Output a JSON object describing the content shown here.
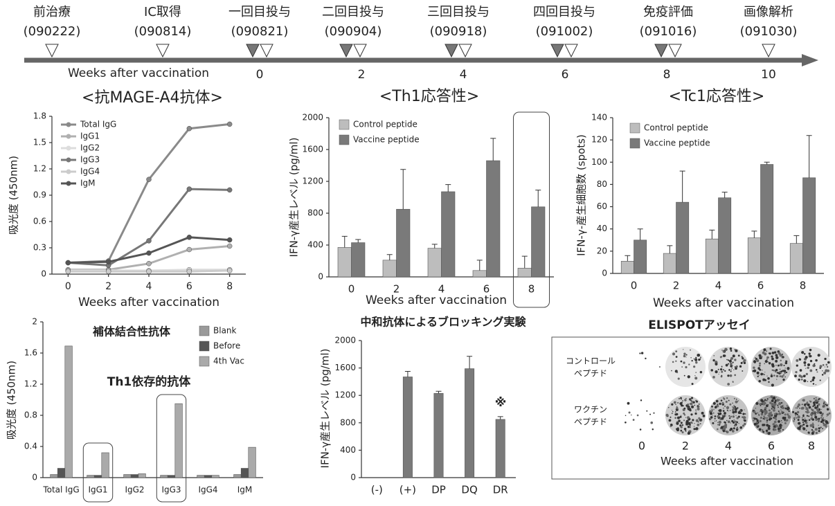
{
  "timeline": {
    "events": [
      {
        "label": "前治療",
        "date": "(090222)"
      },
      {
        "label": "IC取得",
        "date": "(090814)"
      },
      {
        "label": "一回目投与",
        "date": "(090821)"
      },
      {
        "label": "二回目投与",
        "date": "(090904)"
      },
      {
        "label": "三回目投与",
        "date": "(090918)"
      },
      {
        "label": "四回目投与",
        "date": "(091002)"
      },
      {
        "label": "免疫評価",
        "date": "(091016)"
      },
      {
        "label": "画像解析",
        "date": "(091030)"
      }
    ],
    "axis_label": "Weeks after vaccination",
    "ticks": [
      0,
      2,
      4,
      6,
      8,
      10
    ]
  },
  "chart_data": [
    {
      "type": "line",
      "title": "<抗MAGE-A4抗体>",
      "xlabel": "Weeks after vaccination",
      "ylabel": "吸光度 (450nm)",
      "x": [
        0,
        2,
        4,
        6,
        8
      ],
      "xlim": [
        -0.8,
        8.8
      ],
      "xticks": [
        0,
        2,
        4,
        6,
        8
      ],
      "ylim": [
        0,
        1.8
      ],
      "yticks": [
        0,
        0.3,
        0.6,
        0.9,
        1.2,
        1.5,
        1.8
      ],
      "legend": "upper left",
      "series": [
        {
          "name": "Total IgG",
          "color": "#8a8a8a",
          "values": [
            0.13,
            0.15,
            1.08,
            1.66,
            1.71
          ]
        },
        {
          "name": "IgG1",
          "color": "#b0b0b0",
          "values": [
            0.05,
            0.05,
            0.12,
            0.28,
            0.32
          ]
        },
        {
          "name": "IgG2",
          "color": "#dddddd",
          "values": [
            0.04,
            0.04,
            0.04,
            0.05,
            0.05
          ]
        },
        {
          "name": "IgG3",
          "color": "#777777",
          "values": [
            0.13,
            0.1,
            0.38,
            0.97,
            0.96
          ]
        },
        {
          "name": "IgG4",
          "color": "#cccccc",
          "values": [
            0.03,
            0.03,
            0.03,
            0.03,
            0.04
          ]
        },
        {
          "name": "IgM",
          "color": "#555555",
          "values": [
            0.13,
            0.14,
            0.24,
            0.42,
            0.39
          ]
        }
      ]
    },
    {
      "type": "bar",
      "title": "<Th1応答性>",
      "xlabel": "Weeks after vaccination",
      "ylabel": "IFN-γ産生レベル (pg/ml)",
      "categories": [
        "0",
        "2",
        "4",
        "6",
        "8"
      ],
      "ylim": [
        0,
        2000
      ],
      "yticks": [
        0,
        400,
        800,
        1200,
        1600,
        2000
      ],
      "legend": "upper left",
      "series": [
        {
          "name": "Control peptide",
          "color": "#bdbdbd",
          "values": [
            370,
            210,
            360,
            80,
            110
          ],
          "errors": [
            140,
            70,
            50,
            130,
            150
          ]
        },
        {
          "name": "Vaccine peptide",
          "color": "#7a7a7a",
          "values": [
            430,
            850,
            1070,
            1460,
            880
          ],
          "errors": [
            40,
            500,
            90,
            280,
            210
          ]
        }
      ]
    },
    {
      "type": "bar",
      "title": "<Tc1応答性>",
      "xlabel": "Weeks after vaccination",
      "ylabel": "IFN-γ-産生細胞数 (spots)",
      "categories": [
        "0",
        "2",
        "4",
        "6",
        "8"
      ],
      "ylim": [
        0,
        140
      ],
      "yticks": [
        0,
        20,
        40,
        60,
        80,
        100,
        120,
        140
      ],
      "legend": "upper left",
      "series": [
        {
          "name": "Control peptide",
          "color": "#bdbdbd",
          "values": [
            11,
            18,
            31,
            32,
            27
          ],
          "errors": [
            5,
            7,
            8,
            6,
            7
          ]
        },
        {
          "name": "Vaccine peptide",
          "color": "#7a7a7a",
          "values": [
            30,
            64,
            68,
            98,
            86
          ],
          "errors": [
            10,
            28,
            5,
            2,
            38
          ]
        }
      ]
    },
    {
      "type": "bar",
      "title": "補体結合性抗体",
      "ylabel": "吸光度 (450nm)",
      "annotations": [
        "Th1依存的抗体"
      ],
      "categories": [
        "Total IgG",
        "IgG1",
        "IgG2",
        "IgG3",
        "IgG4",
        "IgM"
      ],
      "ylim": [
        0,
        2
      ],
      "yticks": [
        0,
        0.4,
        0.8,
        1.2,
        1.6,
        2
      ],
      "legend": "upper right",
      "series": [
        {
          "name": "Blank",
          "color": "#9a9a9a",
          "values": [
            0.04,
            0.03,
            0.04,
            0.03,
            0.03,
            0.04
          ]
        },
        {
          "name": "Before",
          "color": "#555555",
          "values": [
            0.12,
            0.03,
            0.04,
            0.03,
            0.03,
            0.12
          ]
        },
        {
          "name": "4th Vac",
          "color": "#aaaaaa",
          "values": [
            1.69,
            0.32,
            0.05,
            0.95,
            0.03,
            0.39
          ]
        }
      ]
    },
    {
      "type": "bar",
      "title": "中和抗体によるブロッキング実験",
      "ylabel": "IFN-γ産生レベル (pg/ml)",
      "annotations": [
        "※"
      ],
      "categories": [
        "(-)",
        "(+)",
        "DP",
        "DQ",
        "DR"
      ],
      "ylim": [
        0,
        2000
      ],
      "yticks": [
        0,
        400,
        800,
        1200,
        1600,
        2000
      ],
      "color": "#7a7a7a",
      "values": [
        0,
        1470,
        1230,
        1590,
        850
      ],
      "errors": [
        0,
        80,
        30,
        180,
        40
      ]
    }
  ],
  "elispot": {
    "title": "ELISPOTアッセイ",
    "rows": [
      [
        "コントロール",
        "ペプチド"
      ],
      [
        "ワクチン",
        "ペプチド"
      ]
    ],
    "columns": [
      "0",
      "2",
      "4",
      "6",
      "8"
    ],
    "xlabel": "Weeks after vaccination"
  }
}
